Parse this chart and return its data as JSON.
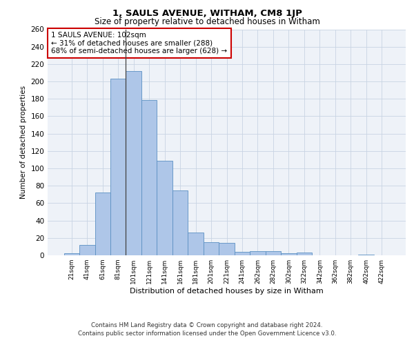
{
  "title1": "1, SAULS AVENUE, WITHAM, CM8 1JP",
  "title2": "Size of property relative to detached houses in Witham",
  "xlabel": "Distribution of detached houses by size in Witham",
  "ylabel": "Number of detached properties",
  "categories": [
    "21sqm",
    "41sqm",
    "61sqm",
    "81sqm",
    "101sqm",
    "121sqm",
    "141sqm",
    "161sqm",
    "181sqm",
    "201sqm",
    "221sqm",
    "241sqm",
    "262sqm",
    "282sqm",
    "302sqm",
    "322sqm",
    "342sqm",
    "362sqm",
    "382sqm",
    "402sqm",
    "422sqm"
  ],
  "values": [
    2,
    12,
    72,
    203,
    212,
    179,
    109,
    75,
    26,
    15,
    14,
    4,
    5,
    5,
    2,
    3,
    0,
    0,
    0,
    1,
    0
  ],
  "bar_color": "#aec6e8",
  "bar_edge_color": "#5a8fc2",
  "property_bin_index": 4,
  "annotation_text": "1 SAULS AVENUE: 102sqm\n← 31% of detached houses are smaller (288)\n68% of semi-detached houses are larger (628) →",
  "annotation_box_color": "#ffffff",
  "annotation_box_edge": "#cc0000",
  "vline_color": "#404040",
  "grid_color": "#c8d4e3",
  "background_color": "#eef2f8",
  "ylim": [
    0,
    260
  ],
  "yticks": [
    0,
    20,
    40,
    60,
    80,
    100,
    120,
    140,
    160,
    180,
    200,
    220,
    240,
    260
  ],
  "footer1": "Contains HM Land Registry data © Crown copyright and database right 2024.",
  "footer2": "Contains public sector information licensed under the Open Government Licence v3.0."
}
